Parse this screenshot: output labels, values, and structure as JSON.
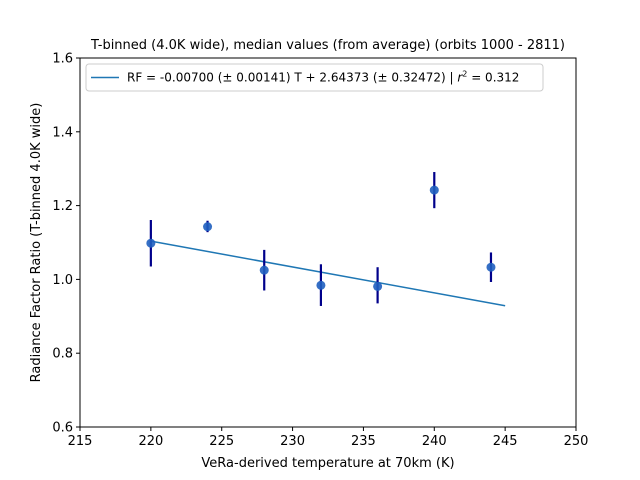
{
  "chart_data": {
    "type": "scatter",
    "title": "T-binned (4.0K wide), median values (from average) (orbits 1000 - 2811)",
    "xlabel": "VeRa-derived temperature at 70km (K)",
    "ylabel": "Radiance Factor Ratio (T-binned 4.0K wide)",
    "xlim": [
      215,
      250
    ],
    "ylim": [
      0.6,
      1.6
    ],
    "xticks": [
      215,
      220,
      225,
      230,
      235,
      240,
      245,
      250
    ],
    "yticks": [
      0.6,
      0.8,
      1.0,
      1.2,
      1.4,
      1.6
    ],
    "xtick_labels": [
      "215",
      "220",
      "225",
      "230",
      "235",
      "240",
      "245",
      "250"
    ],
    "ytick_labels": [
      "0.6",
      "0.8",
      "1.0",
      "1.2",
      "1.4",
      "1.6"
    ],
    "grid": false,
    "legend_position": "upper-left",
    "legend": {
      "prefix": "RF = -0.00700 (± 0.00141) T + 2.64373 (± 0.32472) | ",
      "r_symbol": "r",
      "r_exponent": "2",
      "suffix": " = 0.312"
    },
    "points": {
      "x": [
        220,
        224,
        228,
        232,
        236,
        240,
        244
      ],
      "y": [
        1.098,
        1.143,
        1.025,
        0.984,
        0.981,
        1.242,
        1.033
      ],
      "err_low": [
        1.035,
        1.128,
        0.97,
        0.928,
        0.935,
        1.193,
        0.993
      ],
      "err_high": [
        1.161,
        1.159,
        1.08,
        1.041,
        1.033,
        1.291,
        1.073
      ]
    },
    "fit_line": {
      "x": [
        220,
        245
      ],
      "y": [
        1.1037,
        0.9287
      ]
    },
    "colors": {
      "point": "#1f5fbf",
      "errorbar": "#00008b",
      "fit": "#1f77b4"
    }
  }
}
